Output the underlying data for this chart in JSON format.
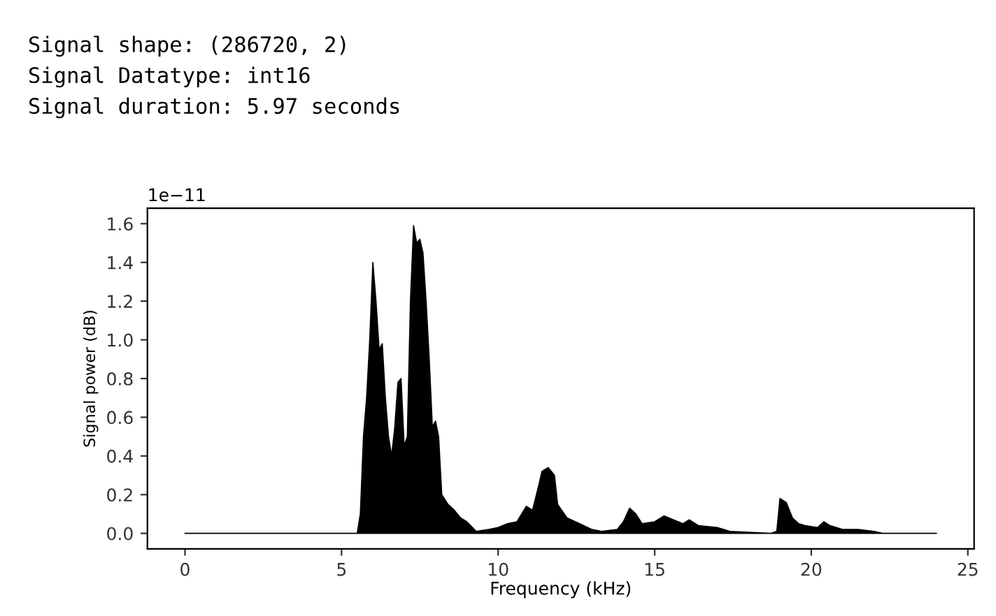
{
  "chart_data": {
    "type": "area",
    "xlabel": "Frequency (kHz)",
    "ylabel": "Signal power (dB)",
    "annotations": [
      "Signal shape: (286720, 2)",
      "Signal Datatype: int16",
      "Signal duration: 5.97 seconds",
      "1e−11"
    ],
    "series": [
      {
        "color": "#000000",
        "x": [
          0,
          5.5,
          5.6,
          5.7,
          5.8,
          5.9,
          6.0,
          6.1,
          6.2,
          6.3,
          6.4,
          6.5,
          6.6,
          6.7,
          6.8,
          6.9,
          7.0,
          7.1,
          7.2,
          7.3,
          7.4,
          7.5,
          7.6,
          7.7,
          7.8,
          7.9,
          8.0,
          8.1,
          8.2,
          8.4,
          8.6,
          8.8,
          9.0,
          9.3,
          9.7,
          10.0,
          10.3,
          10.6,
          10.9,
          11.1,
          11.3,
          11.4,
          11.6,
          11.8,
          11.9,
          12.2,
          12.6,
          13.0,
          13.3,
          13.8,
          14.0,
          14.2,
          14.4,
          14.6,
          15.0,
          15.3,
          15.6,
          15.9,
          16.1,
          16.4,
          17.0,
          17.4,
          18.7,
          18.9,
          19.0,
          19.2,
          19.4,
          19.6,
          19.8,
          20.2,
          20.4,
          20.6,
          21.0,
          21.5,
          22.0,
          22.3,
          24.0
        ],
        "values": [
          0,
          0,
          0.1,
          0.5,
          0.7,
          1.0,
          1.4,
          1.2,
          0.95,
          0.98,
          0.7,
          0.5,
          0.4,
          0.55,
          0.78,
          0.8,
          0.45,
          0.5,
          1.2,
          1.59,
          1.5,
          1.52,
          1.45,
          1.2,
          0.9,
          0.55,
          0.58,
          0.5,
          0.2,
          0.15,
          0.12,
          0.08,
          0.06,
          0.01,
          0.02,
          0.03,
          0.05,
          0.06,
          0.14,
          0.12,
          0.25,
          0.32,
          0.34,
          0.3,
          0.15,
          0.08,
          0.05,
          0.02,
          0.01,
          0.02,
          0.06,
          0.13,
          0.1,
          0.05,
          0.06,
          0.09,
          0.07,
          0.05,
          0.07,
          0.04,
          0.03,
          0.01,
          0,
          0.01,
          0.18,
          0.16,
          0.08,
          0.05,
          0.04,
          0.03,
          0.06,
          0.04,
          0.02,
          0.02,
          0.01,
          0,
          0
        ]
      }
    ],
    "xlim": [
      -1.2,
      25.2
    ],
    "xticks": [
      0,
      5,
      10,
      15,
      20,
      25
    ],
    "ylim": [
      -0.08,
      1.68
    ],
    "yticks": [
      {
        "value": 0,
        "label": "0.0"
      },
      0.2,
      0.4,
      0.6,
      0.8,
      {
        "value": 1,
        "label": "1.0"
      },
      1.2,
      1.4,
      1.6
    ],
    "grid": false,
    "legend": false
  }
}
